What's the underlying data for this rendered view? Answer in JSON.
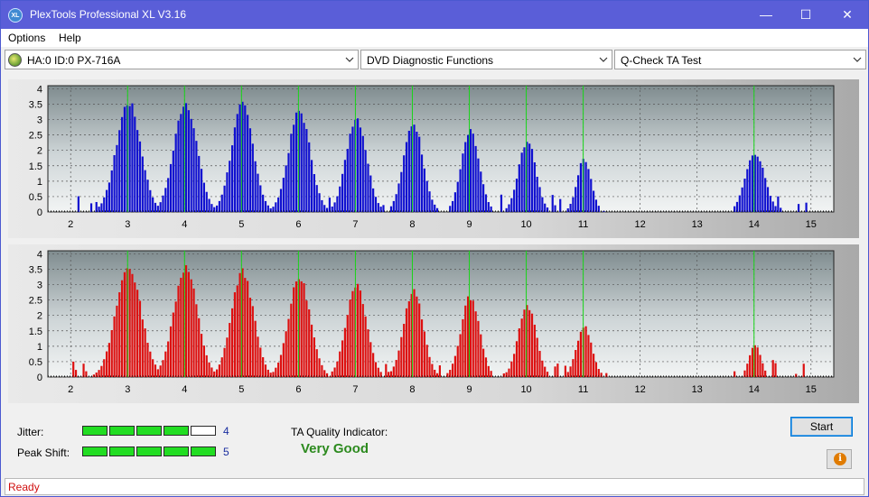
{
  "app": {
    "title": "PlexTools Professional XL V3.16",
    "icon_text": "XL"
  },
  "window_controls": {
    "minimize": "—",
    "maximize": "☐",
    "close": "✕"
  },
  "menu": {
    "items": [
      "Options",
      "Help"
    ]
  },
  "toolbar": {
    "drive": "HA:0 ID:0  PX-716A",
    "function": "DVD Diagnostic Functions",
    "test": "Q-Check TA Test"
  },
  "graphs": {
    "y_ticks": [
      "4",
      "3.5",
      "3",
      "2.5",
      "2",
      "1.5",
      "1",
      "0.5",
      "0"
    ],
    "x_ticks": [
      "2",
      "3",
      "4",
      "5",
      "6",
      "7",
      "8",
      "9",
      "10",
      "11",
      "12",
      "13",
      "14",
      "15"
    ],
    "peak_markers": [
      3,
      4,
      5,
      6,
      7,
      8,
      9,
      10,
      11,
      14
    ],
    "colors": {
      "top_bars": "#1010d0",
      "bottom_bars": "#dd1010",
      "markers": "#19d619"
    }
  },
  "chart_data": [
    {
      "type": "bar",
      "title": "",
      "xlabel": "",
      "ylabel": "",
      "xlim": [
        1.6,
        15.4
      ],
      "ylim": [
        0,
        4.1
      ],
      "series": [
        {
          "peaks": [
            {
              "center": 3.0,
              "height": 3.7,
              "width": 0.38
            },
            {
              "center": 4.0,
              "height": 3.7,
              "width": 0.36
            },
            {
              "center": 5.0,
              "height": 3.6,
              "width": 0.34
            },
            {
              "center": 6.0,
              "height": 3.4,
              "width": 0.34
            },
            {
              "center": 7.0,
              "height": 3.2,
              "width": 0.32
            },
            {
              "center": 8.0,
              "height": 3.0,
              "width": 0.3
            },
            {
              "center": 9.0,
              "height": 2.7,
              "width": 0.28
            },
            {
              "center": 10.0,
              "height": 2.4,
              "width": 0.27
            },
            {
              "center": 11.0,
              "height": 1.8,
              "width": 0.22
            },
            {
              "center": 14.0,
              "height": 2.0,
              "width": 0.3
            }
          ]
        }
      ]
    },
    {
      "type": "bar",
      "title": "",
      "xlabel": "",
      "ylabel": "",
      "xlim": [
        1.6,
        15.4
      ],
      "ylim": [
        0,
        4.1
      ],
      "series": [
        {
          "peaks": [
            {
              "center": 3.0,
              "height": 3.7,
              "width": 0.4
            },
            {
              "center": 4.0,
              "height": 3.7,
              "width": 0.37
            },
            {
              "center": 5.0,
              "height": 3.55,
              "width": 0.35
            },
            {
              "center": 6.0,
              "height": 3.35,
              "width": 0.34
            },
            {
              "center": 7.0,
              "height": 3.15,
              "width": 0.32
            },
            {
              "center": 8.0,
              "height": 2.95,
              "width": 0.3
            },
            {
              "center": 9.0,
              "height": 2.7,
              "width": 0.29
            },
            {
              "center": 10.0,
              "height": 2.4,
              "width": 0.28
            },
            {
              "center": 11.0,
              "height": 1.7,
              "width": 0.24
            },
            {
              "center": 14.0,
              "height": 1.1,
              "width": 0.18
            }
          ]
        }
      ]
    }
  ],
  "results": {
    "jitter_label": "Jitter:",
    "jitter_value": "4",
    "jitter_level": 4,
    "peak_shift_label": "Peak Shift:",
    "peak_shift_value": "5",
    "peak_shift_level": 5,
    "meter_segments": 5,
    "ta_label": "TA Quality Indicator:",
    "ta_value": "Very Good"
  },
  "buttons": {
    "start": "Start",
    "info": "i"
  },
  "status": {
    "text": "Ready"
  }
}
